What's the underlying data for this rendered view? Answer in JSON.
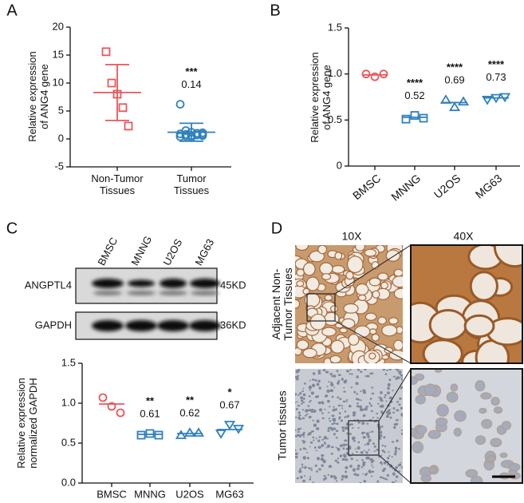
{
  "panels": [
    "A",
    "B",
    "C",
    "D"
  ],
  "chart_data": [
    {
      "type": "dot",
      "ylabel": "Relative expression\nof ANG4 gene",
      "categories": [
        "Non-Tumor\nTissues",
        "Tumor\nTissues"
      ],
      "ylim": [
        -5,
        20
      ],
      "yticks": [
        -5,
        0,
        5,
        10,
        15,
        20
      ],
      "groups": [
        {
          "color": "#e8575a",
          "marker": "square",
          "values": [
            15.6,
            10.0,
            8.0,
            5.6,
            2.3
          ],
          "mean": 8.3,
          "sd": 5.0
        },
        {
          "color": "#2f80bd",
          "marker": "circle",
          "values": [
            6.2,
            1.5,
            1.2,
            1.0,
            0.8,
            0.9,
            0.5,
            0.6,
            0.7,
            1.1,
            0.4,
            0.8,
            0.3,
            1.0,
            0.6
          ],
          "mean": 1.2,
          "sd": 1.6,
          "stars": "***",
          "ratio": 0.14
        }
      ]
    },
    {
      "type": "dot",
      "ylabel": "Relative expression\nof ANG4 gene",
      "categories": [
        "BMSC",
        "MNNG",
        "U2OS",
        "MG63"
      ],
      "rotate_labels": true,
      "ylim": [
        0,
        1.5
      ],
      "yticks": [
        0,
        0.5,
        {
          "value": 1,
          "label": "1.0"
        },
        1.5
      ],
      "groups": [
        {
          "color": "#e8575a",
          "marker": "circle",
          "values": [
            1.0,
            0.97,
            1.0
          ],
          "mean": 0.99
        },
        {
          "color": "#2f80bd",
          "marker": "square",
          "values": [
            0.51,
            0.55,
            0.52
          ],
          "mean": 0.53,
          "stars": "****",
          "ratio": 0.52
        },
        {
          "color": "#2f80bd",
          "marker": "triangle",
          "values": [
            0.72,
            0.64,
            0.7
          ],
          "mean": 0.69,
          "stars": "****",
          "ratio": 0.69
        },
        {
          "color": "#2f80bd",
          "marker": "triangle-down",
          "values": [
            0.72,
            0.74,
            0.75
          ],
          "mean": 0.74,
          "stars": "****",
          "ratio": 0.73
        }
      ]
    },
    {
      "type": "dot",
      "ylabel": "Relative expression\nnormalized GAPDH",
      "categories": [
        "BMSC",
        "MNNG",
        "U2OS",
        "MG63"
      ],
      "ylim": [
        0,
        1.5
      ],
      "yticks": [
        {
          "value": 0,
          "label": "0.0"
        },
        0.5,
        {
          "value": 1,
          "label": "1.0"
        },
        1.5
      ],
      "groups": [
        {
          "color": "#e8575a",
          "marker": "circle",
          "values": [
            1.07,
            0.96,
            0.88
          ],
          "mean": 0.99
        },
        {
          "color": "#2f80bd",
          "marker": "square",
          "values": [
            0.6,
            0.62,
            0.6
          ],
          "mean": 0.61,
          "stars": "**",
          "ratio": 0.61
        },
        {
          "color": "#2f80bd",
          "marker": "triangle",
          "values": [
            0.6,
            0.63,
            0.63
          ],
          "mean": 0.62,
          "stars": "**",
          "ratio": 0.62
        },
        {
          "color": "#2f80bd",
          "marker": "triangle-down",
          "values": [
            0.62,
            0.73,
            0.68
          ],
          "mean": 0.67,
          "stars": "*",
          "ratio": 0.67
        }
      ]
    }
  ],
  "blot": {
    "lanes": [
      "BMSC",
      "MNNG",
      "U2OS",
      "MG63"
    ],
    "rows": [
      {
        "label": "ANGPTL4",
        "size": "45KD"
      },
      {
        "label": "GAPDH",
        "size": "36KD"
      }
    ]
  },
  "histology": {
    "columns": [
      "10X",
      "40X"
    ],
    "rows": [
      "Adjacent Non-\nTumor Tissues",
      "Tumor tissues"
    ]
  }
}
